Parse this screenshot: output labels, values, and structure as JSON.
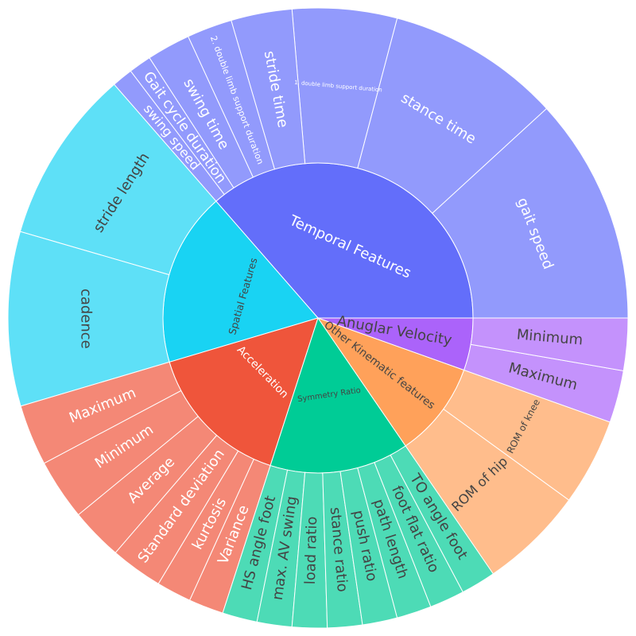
{
  "chart_data": {
    "type": "sunburst",
    "title": "",
    "children": [
      {
        "name": "Temporal Features",
        "color": "#636efa",
        "label_color": "#ffffff",
        "children": [
          {
            "name": "gait speed",
            "value": 13
          },
          {
            "name": "stance time",
            "value": 10
          },
          {
            "name": "1. double limb support duration",
            "value": 6
          },
          {
            "name": "stride time",
            "value": 3.5
          },
          {
            "name": "2. double limb support duration",
            "value": 2.6
          },
          {
            "name": "swing time",
            "value": 2.5
          },
          {
            "name": "Gait cycle duration",
            "value": 1.3
          },
          {
            "name": "swing speed",
            "value": 1.2
          }
        ]
      },
      {
        "name": "Spatial Features",
        "color": "#19d3f3",
        "label_color": "#444444",
        "children": [
          {
            "name": "stride length",
            "value": 10
          },
          {
            "name": "cadence",
            "value": 10
          }
        ]
      },
      {
        "name": "Acceleration",
        "color": "#ef553b",
        "label_color": "#ffffff",
        "children": [
          {
            "name": "Maximum",
            "value": 3.5
          },
          {
            "name": "Minimum",
            "value": 3.5
          },
          {
            "name": "Average",
            "value": 3
          },
          {
            "name": "Standard deviation",
            "value": 3
          },
          {
            "name": "kurtosis",
            "value": 2
          },
          {
            "name": "Variance",
            "value": 2
          }
        ]
      },
      {
        "name": "Symmetry Ratio",
        "color": "#00cc96",
        "label_color": "#444444",
        "children": [
          {
            "name": "HS angle foot",
            "value": 2
          },
          {
            "name": "max. AV swing",
            "value": 2
          },
          {
            "name": "load ratio",
            "value": 2
          },
          {
            "name": "stance ratio",
            "value": 2
          },
          {
            "name": "push ratio",
            "value": 2
          },
          {
            "name": "path length",
            "value": 2
          },
          {
            "name": "foot flat ratio",
            "value": 2
          },
          {
            "name": "TO angle foot",
            "value": 2
          }
        ]
      },
      {
        "name": "Other Kinematic features",
        "color": "#ffa15a",
        "label_color": "#444444",
        "children": [
          {
            "name": "ROM of hip",
            "value": 6
          },
          {
            "name": "ROM of knee",
            "value": 5
          }
        ]
      },
      {
        "name": "Anuglar Velocity",
        "color": "#ab63fa",
        "label_color": "#444444",
        "children": [
          {
            "name": "Maximum",
            "value": 3
          },
          {
            "name": "Minimum",
            "value": 3
          }
        ]
      }
    ]
  }
}
